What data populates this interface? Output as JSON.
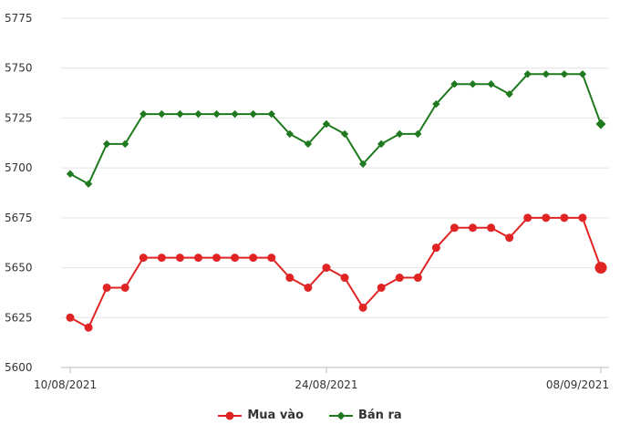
{
  "chart_data": {
    "type": "line",
    "x": [
      "10/08/2021",
      "11/08/2021",
      "12/08/2021",
      "13/08/2021",
      "14/08/2021",
      "15/08/2021",
      "16/08/2021",
      "17/08/2021",
      "18/08/2021",
      "19/08/2021",
      "20/08/2021",
      "21/08/2021",
      "22/08/2021",
      "23/08/2021",
      "24/08/2021",
      "25/08/2021",
      "26/08/2021",
      "27/08/2021",
      "28/08/2021",
      "29/08/2021",
      "30/08/2021",
      "31/08/2021",
      "01/09/2021",
      "02/09/2021",
      "03/09/2021",
      "04/09/2021",
      "05/09/2021",
      "06/09/2021",
      "07/09/2021",
      "08/09/2021"
    ],
    "x_tick_labels": [
      {
        "index": 0,
        "label": "10/08/2021"
      },
      {
        "index": 14,
        "label": "24/08/2021"
      },
      {
        "index": 29,
        "label": "08/09/2021"
      }
    ],
    "y_ticks": [
      5600,
      5625,
      5650,
      5675,
      5700,
      5725,
      5750,
      5775
    ],
    "ylim": [
      5600,
      5775
    ],
    "grid": "horizontal",
    "legend_position": "bottom-center",
    "series": [
      {
        "name": "Mua vào",
        "color": "#e02424",
        "marker": "circle",
        "values": [
          5625,
          5620,
          5640,
          5640,
          5655,
          5655,
          5655,
          5655,
          5655,
          5655,
          5655,
          5655,
          5645,
          5640,
          5650,
          5645,
          5630,
          5640,
          5645,
          5645,
          5660,
          5670,
          5670,
          5670,
          5665,
          5675,
          5675,
          5675,
          5675,
          5650
        ]
      },
      {
        "name": "Bán ra",
        "color": "#1f7a1f",
        "marker": "diamond",
        "values": [
          5697,
          5692,
          5712,
          5712,
          5727,
          5727,
          5727,
          5727,
          5727,
          5727,
          5727,
          5727,
          5717,
          5712,
          5722,
          5717,
          5702,
          5712,
          5717,
          5717,
          5732,
          5742,
          5742,
          5742,
          5737,
          5747,
          5747,
          5747,
          5747,
          5722
        ]
      }
    ]
  }
}
